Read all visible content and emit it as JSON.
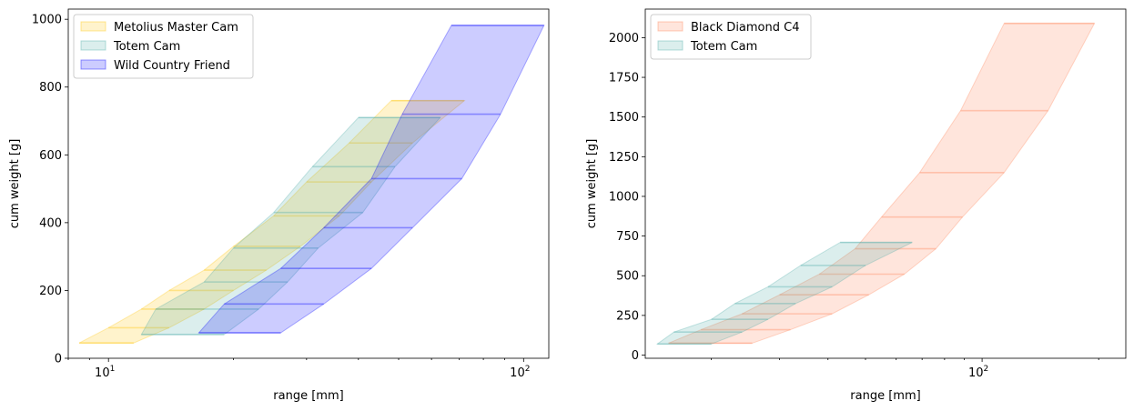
{
  "chart_data": [
    {
      "type": "area",
      "xlabel": "range [mm]",
      "ylabel": "cum weight [g]",
      "xscale": "log",
      "xlim": [
        8,
        115
      ],
      "ylim": [
        0,
        1030
      ],
      "xticks": [
        {
          "value": 10,
          "base": "10",
          "exp": "1"
        },
        {
          "value": 100,
          "base": "10",
          "exp": "2"
        }
      ],
      "yticks": [
        0,
        200,
        400,
        600,
        800,
        1000
      ],
      "legend": "top-left",
      "grid": false,
      "series": [
        {
          "name": "Metolius Master Cam",
          "color": "#FFC400",
          "rows": [
            [
              8.5,
              11.5,
              45
            ],
            [
              10,
              14,
              90
            ],
            [
              12,
              17,
              145
            ],
            [
              14,
              20,
              200
            ],
            [
              17,
              24,
              260
            ],
            [
              20,
              29,
              330
            ],
            [
              25,
              36,
              420
            ],
            [
              30,
              43,
              520
            ],
            [
              38,
              54,
              635
            ],
            [
              48,
              72,
              760
            ]
          ]
        },
        {
          "name": "Totem Cam",
          "color": "#49A9A6",
          "rows": [
            [
              12,
              19,
              70
            ],
            [
              13,
              23,
              145
            ],
            [
              17,
              27,
              225
            ],
            [
              20,
              32,
              325
            ],
            [
              25,
              41,
              430
            ],
            [
              31,
              49,
              565
            ],
            [
              40,
              63,
              710
            ]
          ]
        },
        {
          "name": "Wild Country Friend",
          "color": "#0000FF",
          "rows": [
            [
              16.5,
              26,
              75
            ],
            [
              19,
              33,
              160
            ],
            [
              26,
              43,
              265
            ],
            [
              33,
              54,
              385
            ],
            [
              43,
              71,
              530
            ],
            [
              51,
              88,
              720
            ],
            [
              67,
              112,
              982
            ]
          ]
        }
      ]
    },
    {
      "type": "area",
      "xlabel": "range [mm]",
      "ylabel": "cum weight [g]",
      "xscale": "log",
      "xlim": [
        13.5,
        235
      ],
      "ylim": [
        -20,
        2180
      ],
      "xticks": [
        {
          "value": 100,
          "base": "10",
          "exp": "2"
        }
      ],
      "yticks": [
        0,
        250,
        500,
        750,
        1000,
        1250,
        1500,
        1750,
        2000
      ],
      "legend": "top-left",
      "grid": false,
      "series": [
        {
          "name": "Black Diamond C4",
          "color": "#FF7F50",
          "rows": [
            [
              15.5,
              25.5,
              75
            ],
            [
              18.8,
              32,
              160
            ],
            [
              24,
              41,
              260
            ],
            [
              30,
              51,
              380
            ],
            [
              38,
              63,
              510
            ],
            [
              47,
              76,
              670
            ],
            [
              55,
              89,
              870
            ],
            [
              69,
              114,
              1150
            ],
            [
              88,
              148,
              1540
            ],
            [
              114,
              195,
              2090
            ]
          ]
        },
        {
          "name": "Totem Cam",
          "color": "#49A9A6",
          "rows": [
            [
              14.5,
              20,
              70
            ],
            [
              16,
              24,
              145
            ],
            [
              20,
              28,
              225
            ],
            [
              23,
              33,
              325
            ],
            [
              28,
              41,
              430
            ],
            [
              34,
              50,
              565
            ],
            [
              43,
              66,
              710
            ]
          ]
        }
      ]
    }
  ]
}
